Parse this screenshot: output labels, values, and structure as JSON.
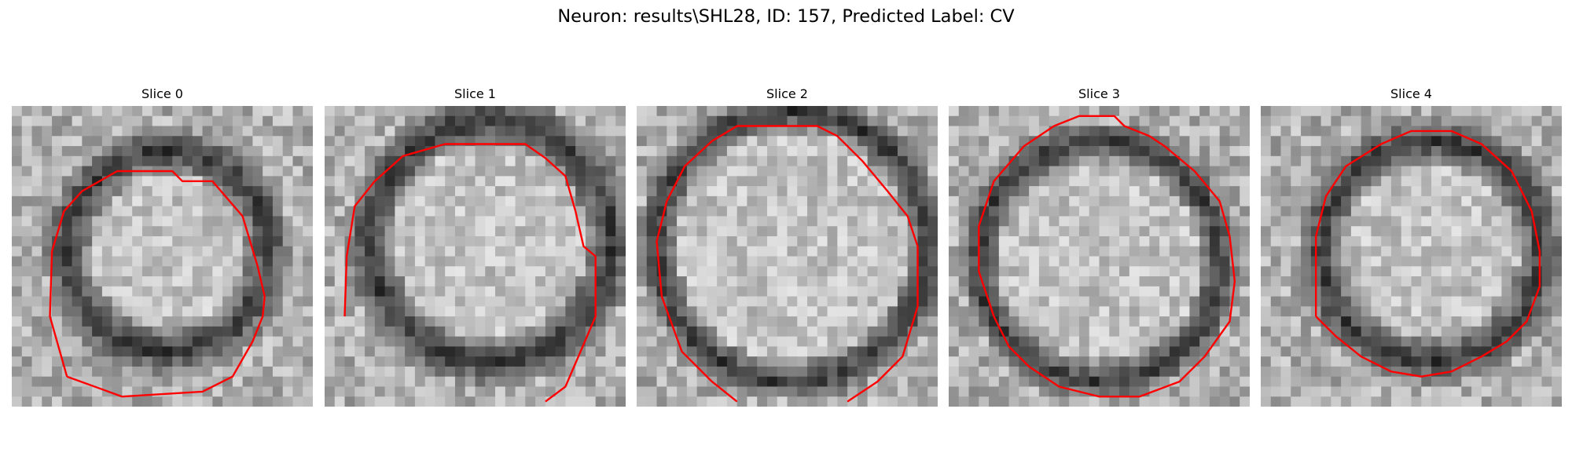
{
  "figure": {
    "title": "Neuron: results\\SHL28, ID: 157, Predicted Label: CV"
  },
  "panels": [
    {
      "title": "Slice 0"
    },
    {
      "title": "Slice 1"
    },
    {
      "title": "Slice 2"
    },
    {
      "title": "Slice 3"
    },
    {
      "title": "Slice 4"
    }
  ],
  "colors": {
    "contour": "#ff0000",
    "background": "#ffffff"
  }
}
